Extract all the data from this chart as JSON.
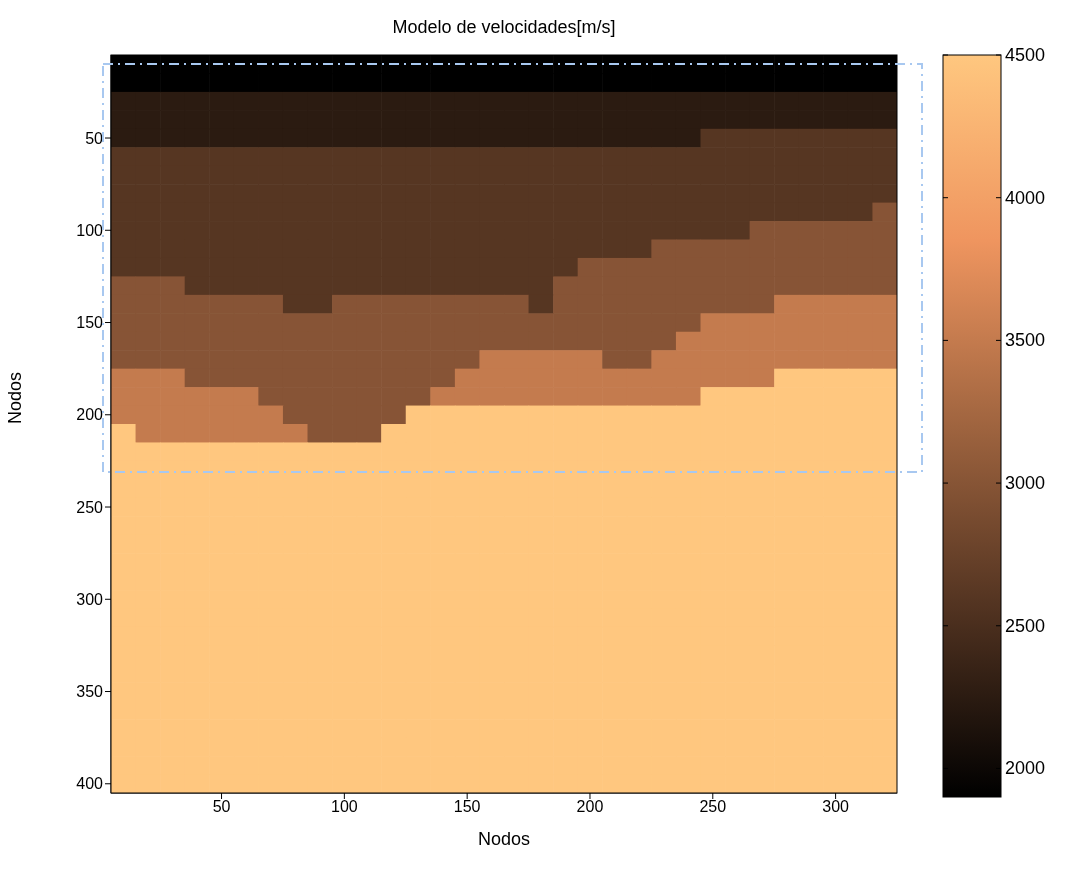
{
  "chart_data": {
    "type": "heatmap",
    "title": "Modelo de velocidades[m/s]",
    "xlabel": "Nodos",
    "ylabel": "Nodos",
    "categories": [
      null,
      null,
      null,
      null,
      "50",
      null,
      null,
      null,
      null,
      "100",
      null,
      null,
      null,
      null,
      "150",
      null,
      null,
      null,
      null,
      "200",
      null,
      null,
      null,
      null,
      "250",
      null,
      null,
      null,
      null,
      "300",
      null,
      null
    ],
    "y_categories": [
      null,
      null,
      null,
      null,
      "50",
      null,
      null,
      null,
      null,
      "100",
      null,
      null,
      null,
      null,
      "150",
      null,
      null,
      null,
      null,
      "200",
      null,
      null,
      null,
      null,
      "250",
      null,
      null,
      null,
      null,
      "300",
      null,
      null,
      null,
      null,
      "350",
      null,
      null,
      null,
      null,
      "400"
    ],
    "clim": [
      1900,
      4500
    ],
    "cticks": [
      2000,
      2500,
      3000,
      3500,
      4000,
      4500
    ],
    "cells": [
      [
        1900,
        1900,
        1900,
        1900,
        1900,
        1900,
        1900,
        1900,
        1900,
        1900,
        1900,
        1900,
        1900,
        1900,
        1900,
        1900,
        1900,
        1900,
        1900,
        1900,
        1900,
        1900,
        1900,
        1900,
        1900,
        1900,
        1900,
        1900,
        1900,
        1900,
        1900,
        1900
      ],
      [
        1900,
        1900,
        1900,
        1900,
        1900,
        1900,
        1900,
        1900,
        1900,
        1900,
        1900,
        1900,
        1900,
        1900,
        1900,
        1900,
        1900,
        1900,
        1900,
        1900,
        1900,
        1900,
        1900,
        1900,
        1900,
        1900,
        1900,
        1900,
        1900,
        1900,
        1900,
        1900
      ],
      [
        2250,
        2250,
        2250,
        2250,
        2250,
        2250,
        2250,
        2250,
        2250,
        2250,
        2250,
        2250,
        2250,
        2250,
        2250,
        2250,
        2250,
        2250,
        2250,
        2250,
        2250,
        2250,
        2250,
        2250,
        2250,
        2250,
        2250,
        2250,
        2250,
        2250,
        2250,
        2250
      ],
      [
        2250,
        2250,
        2250,
        2250,
        2250,
        2250,
        2250,
        2250,
        2250,
        2250,
        2250,
        2250,
        2250,
        2250,
        2250,
        2250,
        2250,
        2250,
        2250,
        2250,
        2250,
        2250,
        2250,
        2250,
        2250,
        2250,
        2250,
        2250,
        2250,
        2250,
        2250,
        2250
      ],
      [
        2250,
        2250,
        2250,
        2250,
        2250,
        2250,
        2250,
        2250,
        2250,
        2250,
        2250,
        2250,
        2250,
        2250,
        2250,
        2250,
        2250,
        2250,
        2250,
        2250,
        2250,
        2250,
        2250,
        2250,
        2600,
        2600,
        2600,
        2600,
        2600,
        2600,
        2600,
        2600
      ],
      [
        2600,
        2600,
        2600,
        2600,
        2600,
        2600,
        2600,
        2600,
        2600,
        2600,
        2600,
        2600,
        2600,
        2600,
        2600,
        2600,
        2600,
        2600,
        2600,
        2600,
        2600,
        2600,
        2600,
        2600,
        2600,
        2600,
        2600,
        2600,
        2600,
        2600,
        2600,
        2600
      ],
      [
        2600,
        2600,
        2600,
        2600,
        2600,
        2600,
        2600,
        2600,
        2600,
        2600,
        2600,
        2600,
        2600,
        2600,
        2600,
        2600,
        2600,
        2600,
        2600,
        2600,
        2600,
        2600,
        2600,
        2600,
        2600,
        2600,
        2600,
        2600,
        2600,
        2600,
        2600,
        2600
      ],
      [
        2600,
        2600,
        2600,
        2600,
        2600,
        2600,
        2600,
        2600,
        2600,
        2600,
        2600,
        2600,
        2600,
        2600,
        2600,
        2600,
        2600,
        2600,
        2600,
        2600,
        2600,
        2600,
        2600,
        2600,
        2600,
        2600,
        2600,
        2600,
        2600,
        2600,
        2600,
        2600
      ],
      [
        2600,
        2600,
        2600,
        2600,
        2600,
        2600,
        2600,
        2600,
        2600,
        2600,
        2600,
        2600,
        2600,
        2600,
        2600,
        2600,
        2600,
        2600,
        2600,
        2600,
        2600,
        2600,
        2600,
        2600,
        2600,
        2600,
        2600,
        2600,
        2600,
        2600,
        2600,
        3000
      ],
      [
        2600,
        2600,
        2600,
        2600,
        2600,
        2600,
        2600,
        2600,
        2600,
        2600,
        2600,
        2600,
        2600,
        2600,
        2600,
        2600,
        2600,
        2600,
        2600,
        2600,
        2600,
        2600,
        2600,
        2600,
        2600,
        2600,
        3000,
        3000,
        3000,
        3000,
        3000,
        3000
      ],
      [
        2600,
        2600,
        2600,
        2600,
        2600,
        2600,
        2600,
        2600,
        2600,
        2600,
        2600,
        2600,
        2600,
        2600,
        2600,
        2600,
        2600,
        2600,
        2600,
        2600,
        2600,
        2600,
        3000,
        3000,
        3000,
        3000,
        3000,
        3000,
        3000,
        3000,
        3000,
        3000
      ],
      [
        2600,
        2600,
        2600,
        2600,
        2600,
        2600,
        2600,
        2600,
        2600,
        2600,
        2600,
        2600,
        2600,
        2600,
        2600,
        2600,
        2600,
        2600,
        2600,
        3000,
        3000,
        3000,
        3000,
        3000,
        3000,
        3000,
        3000,
        3000,
        3000,
        3000,
        3000,
        3000
      ],
      [
        3000,
        3000,
        3000,
        2600,
        2600,
        2600,
        2600,
        2600,
        2600,
        2600,
        2600,
        2600,
        2600,
        2600,
        2600,
        2600,
        2600,
        2600,
        3000,
        3000,
        3000,
        3000,
        3000,
        3000,
        3000,
        3000,
        3000,
        3000,
        3000,
        3000,
        3000,
        3000
      ],
      [
        3000,
        3000,
        3000,
        3000,
        3000,
        3000,
        3000,
        2600,
        2600,
        3000,
        3000,
        3000,
        3000,
        3000,
        3000,
        3000,
        3000,
        2600,
        3000,
        3000,
        3000,
        3000,
        3000,
        3000,
        3000,
        3000,
        3000,
        3500,
        3500,
        3500,
        3500,
        3500
      ],
      [
        3000,
        3000,
        3000,
        3000,
        3000,
        3000,
        3000,
        3000,
        3000,
        3000,
        3000,
        3000,
        3000,
        3000,
        3000,
        3000,
        3000,
        3000,
        3000,
        3000,
        3000,
        3000,
        3000,
        3000,
        3500,
        3500,
        3500,
        3500,
        3500,
        3500,
        3500,
        3500
      ],
      [
        3000,
        3000,
        3000,
        3000,
        3000,
        3000,
        3000,
        3000,
        3000,
        3000,
        3000,
        3000,
        3000,
        3000,
        3000,
        3000,
        3000,
        3000,
        3000,
        3000,
        3000,
        3000,
        3000,
        3500,
        3500,
        3500,
        3500,
        3500,
        3500,
        3500,
        3500,
        3500
      ],
      [
        3000,
        3000,
        3000,
        3000,
        3000,
        3000,
        3000,
        3000,
        3000,
        3000,
        3000,
        3000,
        3000,
        3000,
        3000,
        3500,
        3500,
        3500,
        3500,
        3500,
        3000,
        3000,
        3500,
        3500,
        3500,
        3500,
        3500,
        3500,
        3500,
        3500,
        3500,
        3500
      ],
      [
        3500,
        3500,
        3500,
        3000,
        3000,
        3000,
        3000,
        3000,
        3000,
        3000,
        3000,
        3000,
        3000,
        3000,
        3500,
        3500,
        3500,
        3500,
        3500,
        3500,
        3500,
        3500,
        3500,
        3500,
        3500,
        3500,
        3500,
        4500,
        4500,
        4500,
        4500,
        4500
      ],
      [
        3500,
        3500,
        3500,
        3500,
        3500,
        3500,
        3000,
        3000,
        3000,
        3000,
        3000,
        3000,
        3000,
        3500,
        3500,
        3500,
        3500,
        3500,
        3500,
        3500,
        3500,
        3500,
        3500,
        3500,
        4500,
        4500,
        4500,
        4500,
        4500,
        4500,
        4500,
        4500
      ],
      [
        3500,
        3500,
        3500,
        3500,
        3500,
        3500,
        3500,
        3000,
        3000,
        3000,
        3000,
        3000,
        4500,
        4500,
        4500,
        4500,
        4500,
        4500,
        4500,
        4500,
        4500,
        4500,
        4500,
        4500,
        4500,
        4500,
        4500,
        4500,
        4500,
        4500,
        4500,
        4500
      ],
      [
        4500,
        3500,
        3500,
        3500,
        3500,
        3500,
        3500,
        3500,
        3000,
        3000,
        3000,
        4500,
        4500,
        4500,
        4500,
        4500,
        4500,
        4500,
        4500,
        4500,
        4500,
        4500,
        4500,
        4500,
        4500,
        4500,
        4500,
        4500,
        4500,
        4500,
        4500,
        4500
      ],
      [
        4500,
        4500,
        4500,
        4500,
        4500,
        4500,
        4500,
        4500,
        4500,
        4500,
        4500,
        4500,
        4500,
        4500,
        4500,
        4500,
        4500,
        4500,
        4500,
        4500,
        4500,
        4500,
        4500,
        4500,
        4500,
        4500,
        4500,
        4500,
        4500,
        4500,
        4500,
        4500
      ],
      [
        4500,
        4500,
        4500,
        4500,
        4500,
        4500,
        4500,
        4500,
        4500,
        4500,
        4500,
        4500,
        4500,
        4500,
        4500,
        4500,
        4500,
        4500,
        4500,
        4500,
        4500,
        4500,
        4500,
        4500,
        4500,
        4500,
        4500,
        4500,
        4500,
        4500,
        4500,
        4500
      ],
      [
        4500,
        4500,
        4500,
        4500,
        4500,
        4500,
        4500,
        4500,
        4500,
        4500,
        4500,
        4500,
        4500,
        4500,
        4500,
        4500,
        4500,
        4500,
        4500,
        4500,
        4500,
        4500,
        4500,
        4500,
        4500,
        4500,
        4500,
        4500,
        4500,
        4500,
        4500,
        4500
      ],
      [
        4500,
        4500,
        4500,
        4500,
        4500,
        4500,
        4500,
        4500,
        4500,
        4500,
        4500,
        4500,
        4500,
        4500,
        4500,
        4500,
        4500,
        4500,
        4500,
        4500,
        4500,
        4500,
        4500,
        4500,
        4500,
        4500,
        4500,
        4500,
        4500,
        4500,
        4500,
        4500
      ],
      [
        4500,
        4500,
        4500,
        4500,
        4500,
        4500,
        4500,
        4500,
        4500,
        4500,
        4500,
        4500,
        4500,
        4500,
        4500,
        4500,
        4500,
        4500,
        4500,
        4500,
        4500,
        4500,
        4500,
        4500,
        4500,
        4500,
        4500,
        4500,
        4500,
        4500,
        4500,
        4500
      ],
      [
        4500,
        4500,
        4500,
        4500,
        4500,
        4500,
        4500,
        4500,
        4500,
        4500,
        4500,
        4500,
        4500,
        4500,
        4500,
        4500,
        4500,
        4500,
        4500,
        4500,
        4500,
        4500,
        4500,
        4500,
        4500,
        4500,
        4500,
        4500,
        4500,
        4500,
        4500,
        4500
      ],
      [
        4500,
        4500,
        4500,
        4500,
        4500,
        4500,
        4500,
        4500,
        4500,
        4500,
        4500,
        4500,
        4500,
        4500,
        4500,
        4500,
        4500,
        4500,
        4500,
        4500,
        4500,
        4500,
        4500,
        4500,
        4500,
        4500,
        4500,
        4500,
        4500,
        4500,
        4500,
        4500
      ],
      [
        4500,
        4500,
        4500,
        4500,
        4500,
        4500,
        4500,
        4500,
        4500,
        4500,
        4500,
        4500,
        4500,
        4500,
        4500,
        4500,
        4500,
        4500,
        4500,
        4500,
        4500,
        4500,
        4500,
        4500,
        4500,
        4500,
        4500,
        4500,
        4500,
        4500,
        4500,
        4500
      ],
      [
        4500,
        4500,
        4500,
        4500,
        4500,
        4500,
        4500,
        4500,
        4500,
        4500,
        4500,
        4500,
        4500,
        4500,
        4500,
        4500,
        4500,
        4500,
        4500,
        4500,
        4500,
        4500,
        4500,
        4500,
        4500,
        4500,
        4500,
        4500,
        4500,
        4500,
        4500,
        4500
      ],
      [
        4500,
        4500,
        4500,
        4500,
        4500,
        4500,
        4500,
        4500,
        4500,
        4500,
        4500,
        4500,
        4500,
        4500,
        4500,
        4500,
        4500,
        4500,
        4500,
        4500,
        4500,
        4500,
        4500,
        4500,
        4500,
        4500,
        4500,
        4500,
        4500,
        4500,
        4500,
        4500
      ],
      [
        4500,
        4500,
        4500,
        4500,
        4500,
        4500,
        4500,
        4500,
        4500,
        4500,
        4500,
        4500,
        4500,
        4500,
        4500,
        4500,
        4500,
        4500,
        4500,
        4500,
        4500,
        4500,
        4500,
        4500,
        4500,
        4500,
        4500,
        4500,
        4500,
        4500,
        4500,
        4500
      ],
      [
        4500,
        4500,
        4500,
        4500,
        4500,
        4500,
        4500,
        4500,
        4500,
        4500,
        4500,
        4500,
        4500,
        4500,
        4500,
        4500,
        4500,
        4500,
        4500,
        4500,
        4500,
        4500,
        4500,
        4500,
        4500,
        4500,
        4500,
        4500,
        4500,
        4500,
        4500,
        4500
      ],
      [
        4500,
        4500,
        4500,
        4500,
        4500,
        4500,
        4500,
        4500,
        4500,
        4500,
        4500,
        4500,
        4500,
        4500,
        4500,
        4500,
        4500,
        4500,
        4500,
        4500,
        4500,
        4500,
        4500,
        4500,
        4500,
        4500,
        4500,
        4500,
        4500,
        4500,
        4500,
        4500
      ],
      [
        4500,
        4500,
        4500,
        4500,
        4500,
        4500,
        4500,
        4500,
        4500,
        4500,
        4500,
        4500,
        4500,
        4500,
        4500,
        4500,
        4500,
        4500,
        4500,
        4500,
        4500,
        4500,
        4500,
        4500,
        4500,
        4500,
        4500,
        4500,
        4500,
        4500,
        4500,
        4500
      ],
      [
        4500,
        4500,
        4500,
        4500,
        4500,
        4500,
        4500,
        4500,
        4500,
        4500,
        4500,
        4500,
        4500,
        4500,
        4500,
        4500,
        4500,
        4500,
        4500,
        4500,
        4500,
        4500,
        4500,
        4500,
        4500,
        4500,
        4500,
        4500,
        4500,
        4500,
        4500,
        4500
      ],
      [
        4500,
        4500,
        4500,
        4500,
        4500,
        4500,
        4500,
        4500,
        4500,
        4500,
        4500,
        4500,
        4500,
        4500,
        4500,
        4500,
        4500,
        4500,
        4500,
        4500,
        4500,
        4500,
        4500,
        4500,
        4500,
        4500,
        4500,
        4500,
        4500,
        4500,
        4500,
        4500
      ],
      [
        4500,
        4500,
        4500,
        4500,
        4500,
        4500,
        4500,
        4500,
        4500,
        4500,
        4500,
        4500,
        4500,
        4500,
        4500,
        4500,
        4500,
        4500,
        4500,
        4500,
        4500,
        4500,
        4500,
        4500,
        4500,
        4500,
        4500,
        4500,
        4500,
        4500,
        4500,
        4500
      ],
      [
        4500,
        4500,
        4500,
        4500,
        4500,
        4500,
        4500,
        4500,
        4500,
        4500,
        4500,
        4500,
        4500,
        4500,
        4500,
        4500,
        4500,
        4500,
        4500,
        4500,
        4500,
        4500,
        4500,
        4500,
        4500,
        4500,
        4500,
        4500,
        4500,
        4500,
        4500,
        4500
      ],
      [
        4500,
        4500,
        4500,
        4500,
        4500,
        4500,
        4500,
        4500,
        4500,
        4500,
        4500,
        4500,
        4500,
        4500,
        4500,
        4500,
        4500,
        4500,
        4500,
        4500,
        4500,
        4500,
        4500,
        4500,
        4500,
        4500,
        4500,
        4500,
        4500,
        4500,
        4500,
        4500
      ]
    ]
  }
}
